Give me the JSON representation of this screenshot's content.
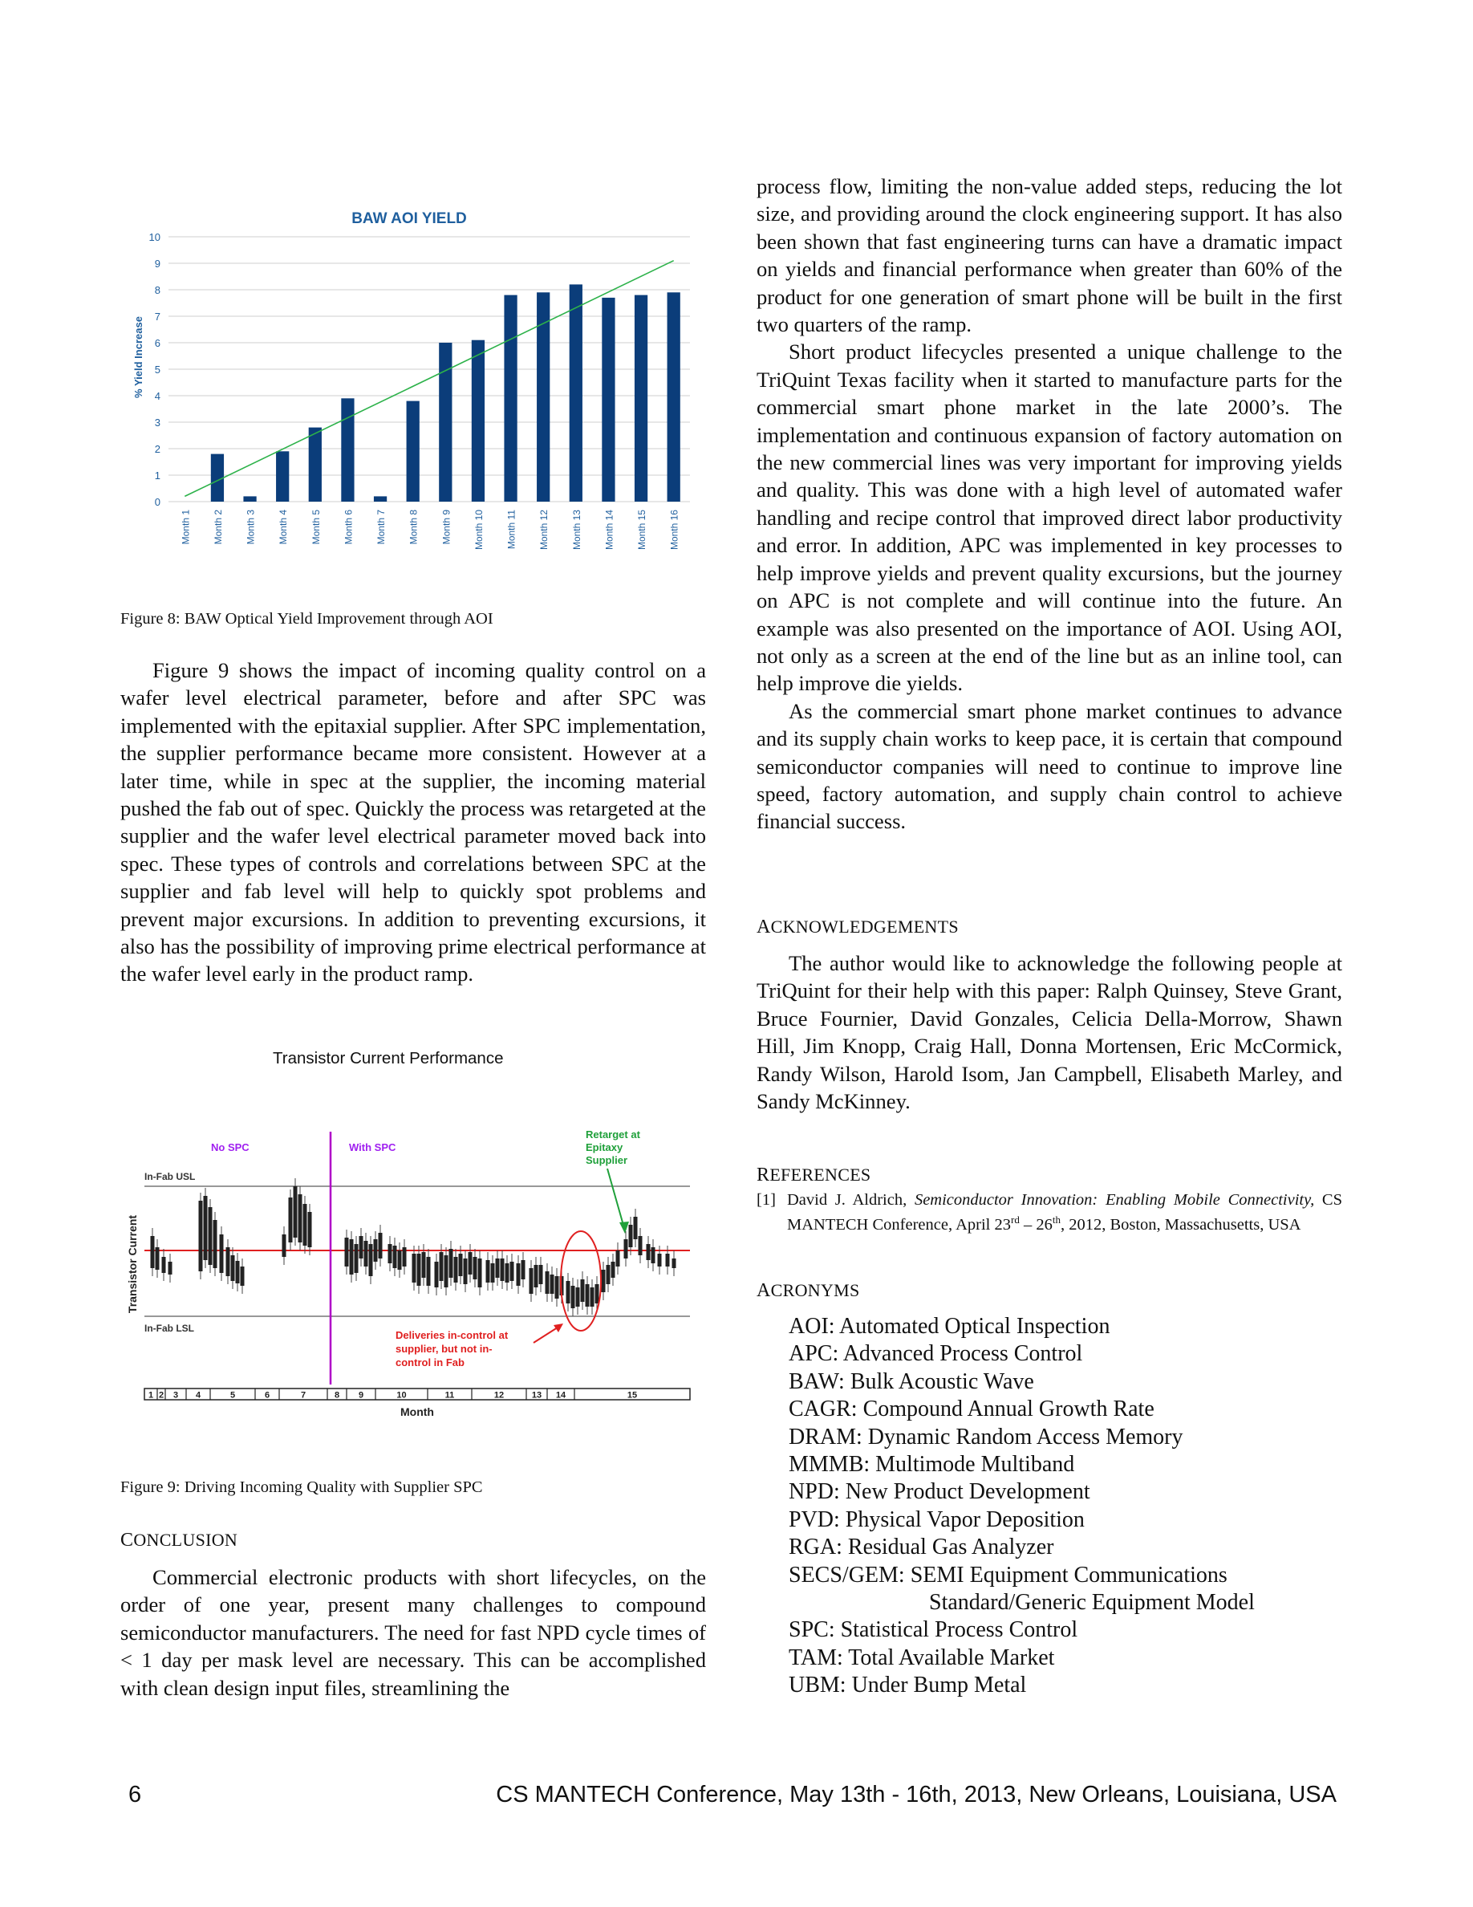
{
  "figure8": {
    "caption": "Figure 8:  BAW Optical Yield Improvement through AOI",
    "chart_data": {
      "type": "bar",
      "title": "BAW AOI YIELD",
      "ylabel": "% Yield Increase",
      "xlabel": "",
      "ylim": [
        0,
        10
      ],
      "yticks": [
        "0",
        "1",
        "2",
        "3",
        "4",
        "5",
        "6",
        "7",
        "8",
        "9",
        "10"
      ],
      "categories": [
        "Month 1",
        "Month 2",
        "Month 3",
        "Month 4",
        "Month 5",
        "Month 6",
        "Month 7",
        "Month 8",
        "Month 9",
        "Month 10",
        "Month 11",
        "Month 12",
        "Month 13",
        "Month 14",
        "Month 15",
        "Month 16"
      ],
      "values": [
        0,
        1.8,
        0.2,
        1.9,
        2.8,
        3.9,
        0.2,
        3.8,
        6.0,
        6.1,
        7.8,
        7.9,
        8.2,
        7.7,
        7.8,
        7.9
      ],
      "trend": {
        "start": 0.2,
        "end": 9.1
      },
      "grid": true,
      "colors": {
        "bar": "#0b3d7a",
        "trend": "#2db24a",
        "title": "#1f5f9e"
      }
    }
  },
  "figure9": {
    "caption": "Figure 9:  Driving Incoming Quality with Supplier SPC",
    "title": "Transistor Current Performance",
    "ylabel": "Transistor Current",
    "xlabel": "Month",
    "labels": {
      "no_spc": "No SPC",
      "with_spc": "With SPC",
      "usl": "In-Fab USL",
      "lsl": "In-Fab LSL",
      "retarget": [
        "Retarget at",
        "Epitaxy",
        "Supplier"
      ],
      "deliveries": [
        "Deliveries in-control at",
        "supplier, but not in-",
        "control in Fab"
      ]
    },
    "months": [
      "1",
      "2",
      "3",
      "4",
      "5",
      "6",
      "7",
      "8",
      "9",
      "10",
      "11",
      "12",
      "13",
      "14",
      "15"
    ],
    "colors": {
      "spc_line": "#b000c8",
      "usl_lsl": "#999999",
      "target": "#e02020",
      "retarget": "#1fa03a",
      "deliveries": "#e02020",
      "purple_text": "#a020f0"
    }
  },
  "left_text": {
    "para1": "Figure 9 shows the impact of incoming quality control on a wafer level electrical parameter, before and after SPC was implemented with the epitaxial supplier.   After SPC implementation, the supplier performance became more consistent.  However at a later time, while in spec at the supplier, the incoming material pushed the fab out of spec. Quickly the process was retargeted at the supplier and the wafer level electrical parameter moved back into spec. These types of controls and correlations between SPC at the supplier and fab level will help to quickly spot problems and prevent major excursions.   In addition to preventing excursions, it also has the possibility of improving prime electrical performance at the wafer level early in the product ramp.",
    "conclusion_heading_first": "C",
    "conclusion_heading_rest": "ONCLUSION",
    "conclusion": "Commercial electronic products with short lifecycles, on the order of one year, present many challenges to compound semiconductor manufacturers.  The need for fast NPD cycle times of < 1 day per mask level are necessary.  This can be accomplished with clean design input files, streamlining the"
  },
  "right_text": {
    "para1": "process flow, limiting the non-value added steps, reducing the lot size, and providing around the clock engineering support.  It has also been shown that fast engineering turns can have a dramatic impact on yields and financial performance when greater than 60% of the product for one generation of smart phone will be built in the first two quarters of the ramp.",
    "para2": "Short product lifecycles presented a unique challenge to the TriQuint Texas facility when it started to manufacture parts for the commercial smart phone market in the late 2000’s.  The implementation and continuous expansion of factory automation on the new commercial lines was very important for improving yields and quality.  This was done with a high level of automated wafer handling and recipe control that improved direct labor productivity and error.  In addition, APC was implemented in key processes to help improve yields and prevent quality excursions, but the journey on APC is not complete and will continue into the future.  An example was also presented on the importance of AOI.  Using AOI, not only as a screen at the end of the line but as an inline tool, can help improve die yields.",
    "para3": "As the commercial smart phone market continues to advance and its supply chain works to keep pace, it is certain that compound semiconductor companies will need to continue to improve line speed, factory automation, and supply chain control to achieve financial success.",
    "ack_heading_first": "A",
    "ack_heading_rest": "CKNOWLEDGEMENTS",
    "ack": "The author would like to acknowledge the following people at TriQuint for their help with this paper:  Ralph Quinsey, Steve Grant, Bruce Fournier, David Gonzales, Celicia Della-Morrow, Shawn Hill, Jim Knopp, Craig Hall, Donna Mortensen, Eric McCormick, Randy Wilson, Harold Isom, Jan Campbell, Elisabeth Marley, and Sandy McKinney.",
    "ref_heading_first": "R",
    "ref_heading_rest": "EFERENCES",
    "ref1_num": "[1]",
    "ref1_author": "David J. Aldrich, ",
    "ref1_title": "Semiconductor Innovation: Enabling Mobile Connectivity,",
    "ref1_rest_a": " CS MANTECH Conference, April 23",
    "ref1_sup1": "rd",
    "ref1_rest_b": " – 26",
    "ref1_sup2": "th",
    "ref1_rest_c": ", 2012, Boston, Massachusetts, USA",
    "acr_heading_first": "A",
    "acr_heading_rest": "CRONYMS",
    "acronyms": [
      "AOI: Automated Optical Inspection",
      "APC: Advanced Process Control",
      "BAW: Bulk Acoustic Wave",
      "CAGR: Compound Annual Growth Rate",
      "DRAM: Dynamic Random Access Memory",
      "MMMB:  Multimode Multiband",
      "NPD: New Product Development",
      "PVD: Physical Vapor Deposition",
      "RGA: Residual Gas Analyzer",
      "SECS/GEM:   SEMI Equipment Communications",
      "Standard/Generic Equipment Model",
      "SPC: Statistical Process Control",
      "TAM:  Total Available Market",
      "UBM: Under Bump Metal"
    ]
  },
  "footer": {
    "page_number": "6",
    "conference": "CS MANTECH Conference, May 13th - 16th, 2013, New Orleans, Louisiana, USA"
  }
}
